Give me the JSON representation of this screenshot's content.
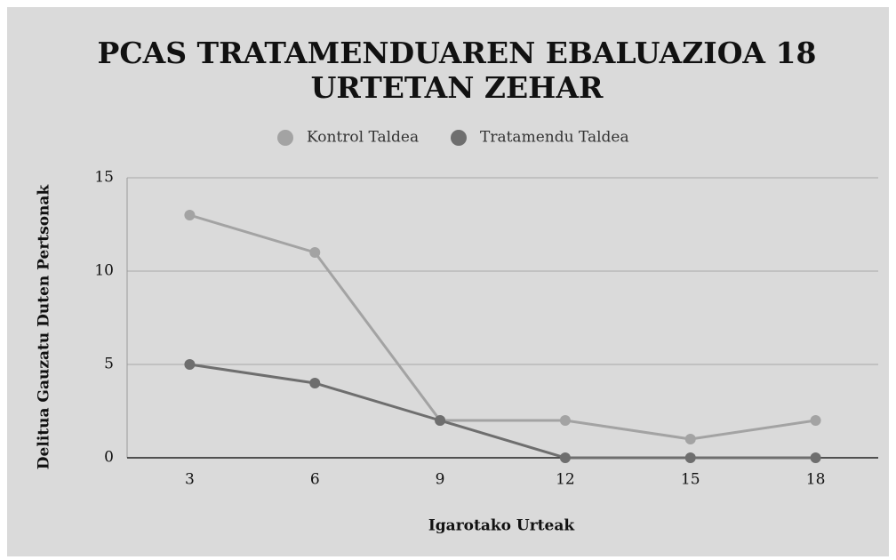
{
  "chart_data": {
    "type": "line",
    "title": [
      "PCAS TRATAMENDUAREN EBALUAZIOA 18",
      "URTETAN ZEHAR"
    ],
    "x_label": "Igarotako Urteak",
    "y_label": "Delitua Gauzatu Duten Pertsonak",
    "categories": [
      3,
      6,
      9,
      12,
      15,
      18
    ],
    "series": [
      {
        "name": "Kontrol Taldea",
        "color": "#a3a3a3",
        "values": [
          13,
          11,
          2,
          2,
          1,
          2
        ]
      },
      {
        "name": "Tratamendu Taldea",
        "color": "#6e6e6e",
        "values": [
          5,
          4,
          2,
          0,
          0,
          0
        ]
      }
    ],
    "ylim": [
      0,
      15
    ],
    "yticks": [
      0,
      5,
      10,
      15
    ],
    "grid": true,
    "legend": "top"
  }
}
